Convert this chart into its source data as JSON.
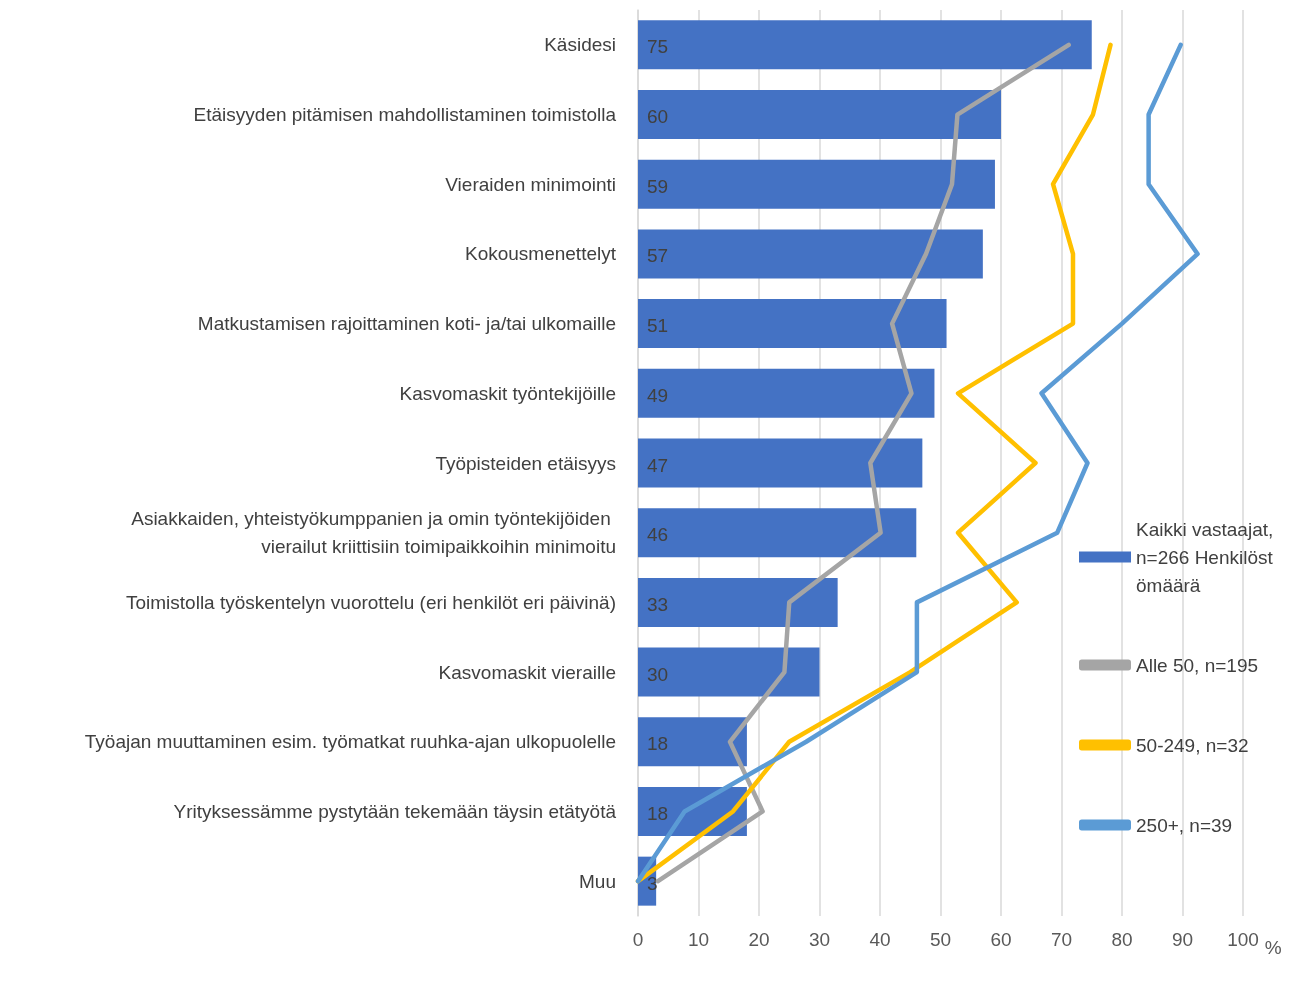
{
  "chart_data": {
    "type": "bar",
    "orientation": "horizontal",
    "xlabel": "%",
    "categories": [
      "Käsidesi",
      "Etäisyyden pitämisen mahdollistaminen toimistolla",
      "Vieraiden minimointi",
      "Kokousmenettelyt",
      "Matkustamisen rajoittaminen koti- ja/tai ulkomaille",
      "Kasvomaskit työntekijöille",
      "Työpisteiden etäisyys",
      "Asiakkaiden, yhteistyökumppanien ja omin työntekijöiden vierailut kriittisiin toimipaikkoihin minimoitu",
      "Toimistolla työskentelyn vuorottelu (eri henkilöt eri päivinä)",
      "Kasvomaskit vieraille",
      "Työajan muuttaminen esim. työmatkat ruuhka-ajan ulkopuolelle",
      "Yrityksessämme pystytään tekemään täysin etätyötä",
      "Muu"
    ],
    "series": [
      {
        "name": "Kaikki vastaajat, n=266 Henkilöstömäärä",
        "color": "#4472c4",
        "values": [
          75,
          60,
          59,
          57,
          51,
          49,
          47,
          46,
          33,
          30,
          18,
          18,
          3
        ],
        "value_labels": [
          "75",
          "60",
          "59",
          "57",
          "51",
          "49",
          "47",
          "46",
          "33",
          "30",
          "18",
          "18",
          "3"
        ]
      },
      {
        "name": "Alle 50, n=195",
        "type": "line",
        "color": "#a5a5a5",
        "values": [
          71.2,
          52.8,
          51.9,
          47.6,
          42,
          45.2,
          38.4,
          40.1,
          25,
          24.2,
          15.2,
          20.6,
          3.3
        ]
      },
      {
        "name": "50-249, n=32",
        "type": "line",
        "color": "#ffc000",
        "values": [
          78.1,
          75.2,
          68.6,
          71.9,
          71.9,
          52.9,
          65.7,
          52.9,
          62.6,
          45,
          25,
          15.7,
          0
        ]
      },
      {
        "name": "250+, n=39",
        "type": "line",
        "color": "#5b9bd5",
        "values": [
          89.7,
          84.4,
          84.4,
          92.5,
          80,
          66.7,
          74.3,
          69.3,
          46.1,
          46.1,
          27.8,
          7.7,
          0
        ]
      }
    ],
    "xlim": [
      0,
      100
    ],
    "xticks": [
      0,
      10,
      20,
      30,
      40,
      50,
      60,
      70,
      80,
      90,
      100
    ],
    "grid": "x",
    "legend": "right",
    "marker": "none",
    "line_style": "solid"
  }
}
